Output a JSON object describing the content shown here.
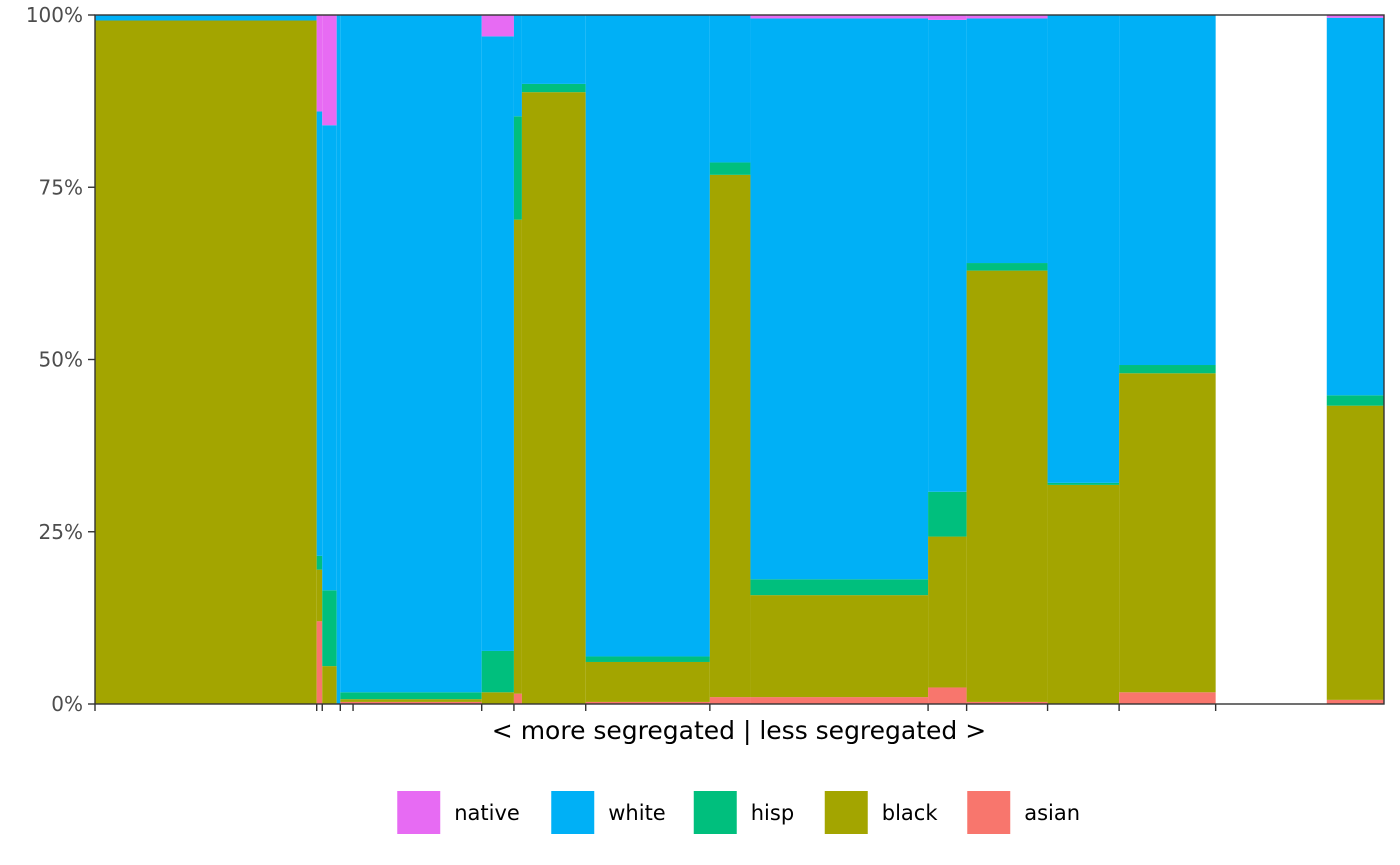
{
  "chart_data": {
    "type": "bar",
    "variant": "stacked-100-variable-width",
    "title": "",
    "xlabel": "< more segregated | less segregated >",
    "ylabel": "",
    "ylim": [
      0,
      1
    ],
    "y_ticks": [
      {
        "value": 0,
        "label": "0%"
      },
      {
        "value": 0.25,
        "label": "25%"
      },
      {
        "value": 0.5,
        "label": "50%"
      },
      {
        "value": 0.75,
        "label": "75%"
      },
      {
        "value": 1,
        "label": "100%"
      }
    ],
    "x_axis": {
      "range": [
        0,
        1
      ],
      "ticks": [
        0,
        0.172,
        0.1763,
        0.1903,
        0.2002,
        0.3,
        0.325,
        0.3807,
        0.477,
        0.6463,
        0.6762,
        0.739,
        0.7945,
        0.8694
      ]
    },
    "groups": [
      "asian",
      "black",
      "hisp",
      "white",
      "native"
    ],
    "legend": {
      "position": "bottom",
      "order": [
        "native",
        "white",
        "hisp",
        "black",
        "asian"
      ],
      "labels": {
        "native": "native",
        "white": "white",
        "hisp": "hisp",
        "black": "black",
        "asian": "asian"
      }
    },
    "colors": {
      "asian": "#F8766D",
      "black": "#A3A500",
      "hisp": "#00BF7D",
      "white": "#00B0F6",
      "native": "#E76BF3"
    },
    "bars": [
      {
        "x0": 0.0,
        "x1": 0.172,
        "asian": 0.0,
        "black": 0.992,
        "hisp": 0.0,
        "white": 0.008,
        "native": 0.0
      },
      {
        "x0": 0.172,
        "x1": 0.1763,
        "asian": 0.12,
        "black": 0.075,
        "hisp": 0.02,
        "white": 0.645,
        "native": 0.14
      },
      {
        "x0": 0.1763,
        "x1": 0.1875,
        "asian": 0.0,
        "black": 0.055,
        "hisp": 0.11,
        "white": 0.675,
        "native": 0.16
      },
      {
        "x0": 0.1875,
        "x1": 0.1903,
        "asian": 0.0,
        "black": 0.0,
        "hisp": 0.0,
        "white": 1.0,
        "native": 0.0
      },
      {
        "x0": 0.1903,
        "x1": 0.3,
        "asian": 0.003,
        "black": 0.004,
        "hisp": 0.01,
        "white": 0.983,
        "native": 0.0
      },
      {
        "x0": 0.3,
        "x1": 0.325,
        "asian": 0.0,
        "black": 0.017,
        "hisp": 0.06,
        "white": 0.892,
        "native": 0.031
      },
      {
        "x0": 0.325,
        "x1": 0.3312,
        "asian": 0.015,
        "black": 0.688,
        "hisp": 0.15,
        "white": 0.147,
        "native": 0.0
      },
      {
        "x0": 0.3312,
        "x1": 0.3807,
        "asian": 0.0,
        "black": 0.888,
        "hisp": 0.012,
        "white": 0.1,
        "native": 0.0
      },
      {
        "x0": 0.3807,
        "x1": 0.477,
        "asian": 0.003,
        "black": 0.058,
        "hisp": 0.008,
        "white": 0.931,
        "native": 0.0
      },
      {
        "x0": 0.477,
        "x1": 0.5085,
        "asian": 0.01,
        "black": 0.758,
        "hisp": 0.018,
        "white": 0.214,
        "native": 0.0
      },
      {
        "x0": 0.5085,
        "x1": 0.6463,
        "asian": 0.01,
        "black": 0.148,
        "hisp": 0.023,
        "white": 0.814,
        "native": 0.005
      },
      {
        "x0": 0.6463,
        "x1": 0.6762,
        "asian": 0.024,
        "black": 0.219,
        "hisp": 0.065,
        "white": 0.685,
        "native": 0.007
      },
      {
        "x0": 0.6762,
        "x1": 0.739,
        "asian": 0.003,
        "black": 0.626,
        "hisp": 0.011,
        "white": 0.355,
        "native": 0.005
      },
      {
        "x0": 0.739,
        "x1": 0.7945,
        "asian": 0.0,
        "black": 0.318,
        "hisp": 0.003,
        "white": 0.679,
        "native": 0.0
      },
      {
        "x0": 0.7945,
        "x1": 0.8694,
        "asian": 0.017,
        "black": 0.463,
        "hisp": 0.012,
        "white": 0.508,
        "native": 0.0
      },
      {
        "x0": 0.9556,
        "x1": 1.0,
        "asian": 0.006,
        "black": 0.427,
        "hisp": 0.015,
        "white": 0.548,
        "native": 0.004
      }
    ]
  }
}
